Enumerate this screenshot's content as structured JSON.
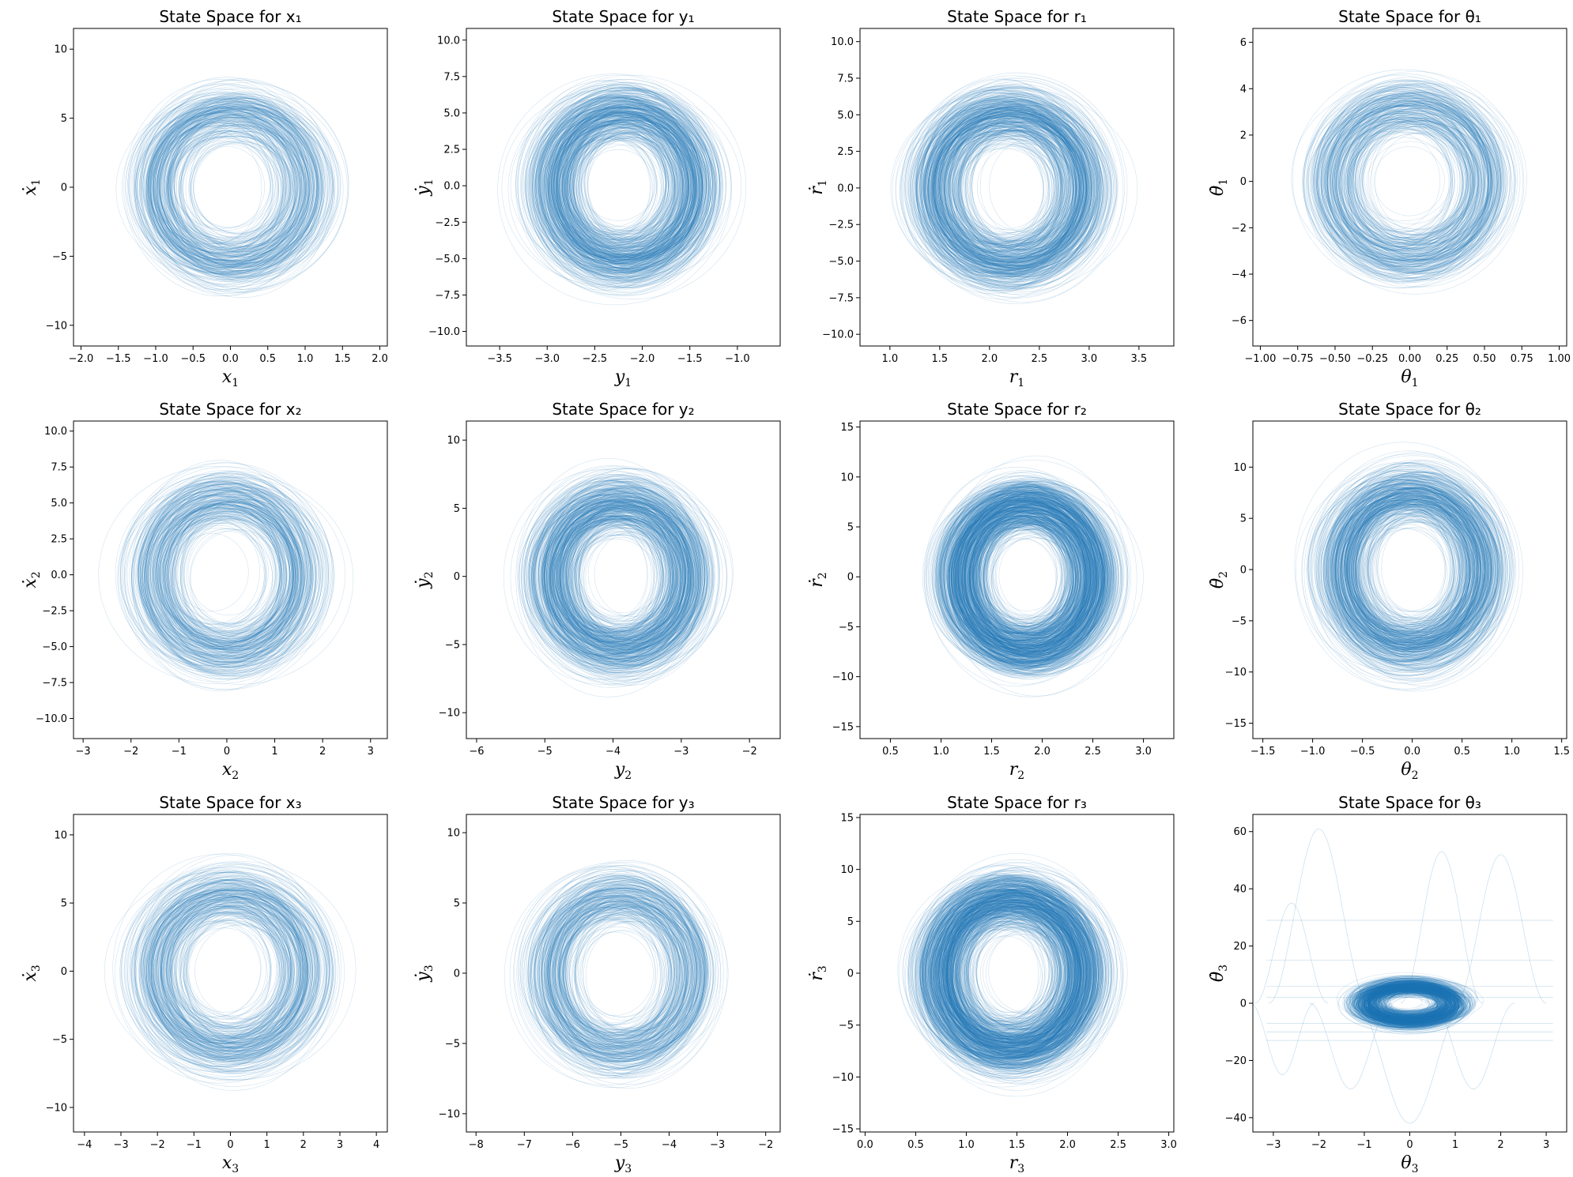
{
  "chart_data": [
    {
      "type": "line",
      "title": "State Space for x₁",
      "xlabel": "x",
      "ylabel": "ẋ",
      "sub": "1",
      "xlim": [
        -2.1,
        2.1
      ],
      "ylim": [
        -11.5,
        11.5
      ],
      "xticks": [
        -2.0,
        -1.5,
        -1.0,
        -0.5,
        0.0,
        0.5,
        1.0,
        1.5,
        2.0
      ],
      "yticks": [
        -10,
        -5,
        0,
        5,
        10
      ],
      "center": [
        0.0,
        0.0
      ],
      "spread": [
        1.9,
        10.4
      ],
      "density": "medium",
      "color": "#1f77b4"
    },
    {
      "type": "line",
      "title": "State Space for y₁",
      "xlabel": "y",
      "ylabel": "ẏ",
      "sub": "1",
      "xlim": [
        -3.85,
        -0.55
      ],
      "ylim": [
        -11.0,
        10.8
      ],
      "xticks": [
        -3.5,
        -3.0,
        -2.5,
        -2.0,
        -1.5,
        -1.0
      ],
      "yticks": [
        -10.0,
        -7.5,
        -5.0,
        -2.5,
        0.0,
        2.5,
        5.0,
        7.5,
        10.0
      ],
      "center": [
        -2.2,
        0.0
      ],
      "spread": [
        1.4,
        9.8
      ],
      "density": "high",
      "color": "#1f77b4"
    },
    {
      "type": "line",
      "title": "State Space for r₁",
      "xlabel": "r",
      "ylabel": "ṙ",
      "sub": "1",
      "xlim": [
        0.7,
        3.85
      ],
      "ylim": [
        -10.8,
        10.9
      ],
      "xticks": [
        1.0,
        1.5,
        2.0,
        2.5,
        3.0,
        3.5
      ],
      "yticks": [
        -10.0,
        -7.5,
        -5.0,
        -2.5,
        0.0,
        2.5,
        5.0,
        7.5,
        10.0
      ],
      "center": [
        2.2,
        0.0
      ],
      "spread": [
        1.4,
        9.8
      ],
      "density": "high",
      "color": "#1f77b4"
    },
    {
      "type": "line",
      "title": "State Space for θ₁",
      "xlabel": "θ",
      "ylabel": "θ̇",
      "sub": "1",
      "xlim": [
        -1.05,
        1.05
      ],
      "ylim": [
        -7.1,
        6.6
      ],
      "xticks": [
        -1.0,
        -0.75,
        -0.5,
        -0.25,
        0.0,
        0.25,
        0.5,
        0.75,
        1.0
      ],
      "yticks": [
        -6,
        -4,
        -2,
        0,
        2,
        4,
        6
      ],
      "center": [
        0.0,
        0.0
      ],
      "spread": [
        0.97,
        6.3
      ],
      "density": "medium",
      "color": "#1f77b4"
    },
    {
      "type": "line",
      "title": "State Space for x₂",
      "xlabel": "x",
      "ylabel": "ẋ",
      "sub": "2",
      "xlim": [
        -3.2,
        3.35
      ],
      "ylim": [
        -11.4,
        10.7
      ],
      "xticks": [
        -3,
        -2,
        -1,
        0,
        1,
        2,
        3
      ],
      "yticks": [
        -10.0,
        -7.5,
        -5.0,
        -2.5,
        0.0,
        2.5,
        5.0,
        7.5,
        10.0
      ],
      "center": [
        0.0,
        0.0
      ],
      "spread": [
        2.9,
        10.3
      ],
      "density": "medium",
      "color": "#1f77b4"
    },
    {
      "type": "line",
      "title": "State Space for y₂",
      "xlabel": "y",
      "ylabel": "ẏ",
      "sub": "2",
      "xlim": [
        -6.15,
        -1.55
      ],
      "ylim": [
        -11.9,
        11.4
      ],
      "xticks": [
        -6,
        -5,
        -4,
        -3,
        -2
      ],
      "yticks": [
        -10,
        -5,
        0,
        5,
        10
      ],
      "center": [
        -3.9,
        0.0
      ],
      "spread": [
        1.9,
        10.4
      ],
      "density": "high",
      "color": "#1f77b4"
    },
    {
      "type": "line",
      "title": "State Space for r₂",
      "xlabel": "r",
      "ylabel": "ṙ",
      "sub": "2",
      "xlim": [
        0.2,
        3.3
      ],
      "ylim": [
        -16.2,
        15.6
      ],
      "xticks": [
        0.5,
        1.0,
        1.5,
        2.0,
        2.5,
        3.0
      ],
      "yticks": [
        -15,
        -10,
        -5,
        0,
        5,
        10,
        15
      ],
      "center": [
        1.85,
        0.0
      ],
      "spread": [
        1.25,
        14.0
      ],
      "density": "very-high",
      "color": "#1f77b4"
    },
    {
      "type": "line",
      "title": "State Space for θ₂",
      "xlabel": "θ",
      "ylabel": "θ̇",
      "sub": "2",
      "xlim": [
        -1.6,
        1.55
      ],
      "ylim": [
        -16.5,
        14.5
      ],
      "xticks": [
        -1.5,
        -1.0,
        -0.5,
        0.0,
        0.5,
        1.0,
        1.5
      ],
      "yticks": [
        -15,
        -10,
        -5,
        0,
        5,
        10
      ],
      "center": [
        0.0,
        0.0
      ],
      "spread": [
        1.35,
        14.5
      ],
      "density": "high",
      "color": "#1f77b4"
    },
    {
      "type": "line",
      "title": "State Space for x₃",
      "xlabel": "x",
      "ylabel": "ẋ",
      "sub": "3",
      "xlim": [
        -4.3,
        4.3
      ],
      "ylim": [
        -11.8,
        11.5
      ],
      "xticks": [
        -4,
        -3,
        -2,
        -1,
        0,
        1,
        2,
        3,
        4
      ],
      "yticks": [
        -10,
        -5,
        0,
        5,
        10
      ],
      "center": [
        0.0,
        0.0
      ],
      "spread": [
        3.9,
        10.8
      ],
      "density": "medium",
      "color": "#1f77b4"
    },
    {
      "type": "line",
      "title": "State Space for y₃",
      "xlabel": "y",
      "ylabel": "ẏ",
      "sub": "3",
      "xlim": [
        -8.2,
        -1.7
      ],
      "ylim": [
        -11.3,
        11.3
      ],
      "xticks": [
        -8,
        -7,
        -6,
        -5,
        -4,
        -3,
        -2
      ],
      "yticks": [
        -10,
        -5,
        0,
        5,
        10
      ],
      "center": [
        -5.0,
        0.0
      ],
      "spread": [
        2.8,
        10.6
      ],
      "density": "medium",
      "color": "#1f77b4"
    },
    {
      "type": "line",
      "title": "State Space for r₃",
      "xlabel": "r",
      "ylabel": "ṙ",
      "sub": "3",
      "xlim": [
        -0.05,
        3.05
      ],
      "ylim": [
        -15.3,
        15.3
      ],
      "xticks": [
        0.0,
        0.5,
        1.0,
        1.5,
        2.0,
        2.5,
        3.0
      ],
      "yticks": [
        -15,
        -10,
        -5,
        0,
        5,
        10,
        15
      ],
      "center": [
        1.45,
        0.0
      ],
      "spread": [
        1.35,
        14.0
      ],
      "density": "very-high",
      "color": "#1f77b4"
    },
    {
      "type": "line",
      "title": "State Space for θ₃",
      "xlabel": "θ",
      "ylabel": "θ̇",
      "sub": "3",
      "xlim": [
        -3.45,
        3.45
      ],
      "ylim": [
        -45,
        66
      ],
      "xticks": [
        -3,
        -2,
        -1,
        0,
        1,
        2,
        3
      ],
      "yticks": [
        -40,
        -20,
        0,
        20,
        40,
        60
      ],
      "center": [
        0.0,
        0.0
      ],
      "spread": [
        1.8,
        60
      ],
      "density": "very-high",
      "color": "#1f77b4"
    }
  ]
}
